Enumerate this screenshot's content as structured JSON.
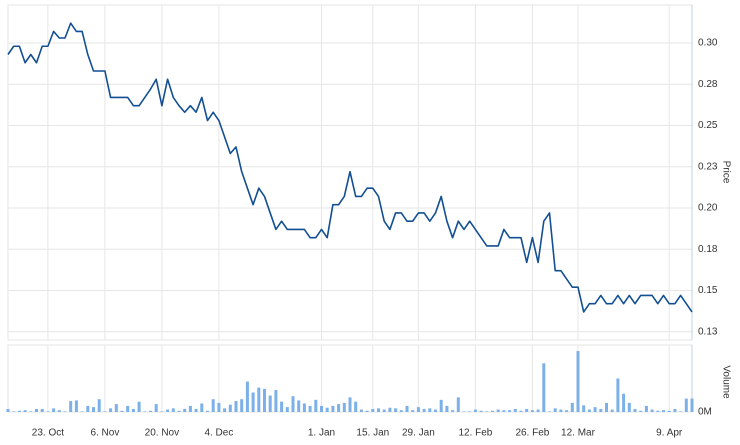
{
  "chart_data": [
    {
      "type": "line",
      "ylabel": "Price",
      "color": "#124f93",
      "grid": true,
      "ylim": [
        0.12,
        0.323
      ],
      "yticks": [
        {
          "value": 0.125,
          "label": "0.13"
        },
        {
          "value": 0.15,
          "label": "0.15"
        },
        {
          "value": 0.175,
          "label": "0.18"
        },
        {
          "value": 0.2,
          "label": "0.20"
        },
        {
          "value": 0.225,
          "label": "0.23"
        },
        {
          "value": 0.25,
          "label": "0.25"
        },
        {
          "value": 0.275,
          "label": "0.28"
        },
        {
          "value": 0.3,
          "label": "0.30"
        }
      ],
      "categories": [
        null,
        null,
        null,
        null,
        null,
        null,
        null,
        "23. Oct",
        null,
        null,
        null,
        null,
        null,
        null,
        null,
        null,
        null,
        "6. Nov",
        null,
        null,
        null,
        null,
        null,
        null,
        null,
        null,
        null,
        "20. Nov",
        null,
        null,
        null,
        null,
        null,
        null,
        null,
        null,
        null,
        "4. Dec",
        null,
        null,
        null,
        null,
        null,
        null,
        null,
        null,
        null,
        null,
        null,
        null,
        null,
        null,
        null,
        null,
        null,
        "1. Jan",
        null,
        null,
        null,
        null,
        null,
        null,
        null,
        null,
        "15. Jan",
        null,
        null,
        null,
        null,
        null,
        null,
        null,
        "29. Jan",
        null,
        null,
        null,
        null,
        null,
        null,
        null,
        null,
        null,
        "12. Feb",
        null,
        null,
        null,
        null,
        null,
        null,
        null,
        null,
        null,
        "26. Feb",
        null,
        null,
        null,
        null,
        null,
        null,
        null,
        "12. Mar",
        null,
        null,
        null,
        null,
        null,
        null,
        null,
        null,
        null,
        null,
        null,
        null,
        null,
        null,
        null,
        "9. Apr",
        null,
        null,
        null,
        null
      ],
      "values": [
        0.293,
        0.298,
        0.298,
        0.288,
        0.293,
        0.288,
        0.298,
        0.298,
        0.307,
        0.303,
        0.303,
        0.312,
        0.307,
        0.307,
        0.293,
        0.283,
        0.283,
        0.283,
        0.267,
        0.267,
        0.267,
        0.267,
        0.262,
        0.262,
        0.267,
        0.272,
        0.278,
        0.262,
        0.278,
        0.267,
        0.262,
        0.258,
        0.262,
        0.258,
        0.267,
        0.253,
        0.258,
        0.253,
        0.243,
        0.233,
        0.237,
        0.222,
        0.212,
        0.202,
        0.212,
        0.207,
        0.197,
        0.187,
        0.192,
        0.187,
        0.187,
        0.187,
        0.187,
        0.182,
        0.182,
        0.187,
        0.182,
        0.202,
        0.202,
        0.207,
        0.222,
        0.207,
        0.207,
        0.212,
        0.212,
        0.207,
        0.192,
        0.187,
        0.197,
        0.197,
        0.192,
        0.192,
        0.197,
        0.197,
        0.192,
        0.197,
        0.207,
        0.192,
        0.182,
        0.192,
        0.187,
        0.192,
        0.187,
        0.182,
        0.177,
        0.177,
        0.177,
        0.187,
        0.182,
        0.182,
        0.182,
        0.167,
        0.182,
        0.167,
        0.192,
        0.197,
        0.162,
        0.162,
        0.157,
        0.152,
        0.152,
        0.137,
        0.142,
        0.142,
        0.147,
        0.142,
        0.142,
        0.147,
        0.142,
        0.147,
        0.142,
        0.147,
        0.147,
        0.147,
        0.142,
        0.147,
        0.142,
        0.142,
        0.147,
        0.142,
        0.137
      ]
    },
    {
      "type": "bar",
      "ylabel": "Volume",
      "color": "#7cb0e8",
      "ylim": [
        0,
        1.1
      ],
      "yticks": [
        {
          "value": 0,
          "label": "0M"
        }
      ],
      "values": [
        0.05,
        0.01,
        0.02,
        0.03,
        0.01,
        0.05,
        0.05,
        0.01,
        0.06,
        0.03,
        0.01,
        0.18,
        0.19,
        0.01,
        0.1,
        0.08,
        0.21,
        0.01,
        0.06,
        0.13,
        0.02,
        0.1,
        0.05,
        0.17,
        0.01,
        0.02,
        0.13,
        0.01,
        0.04,
        0.06,
        0.02,
        0.05,
        0.1,
        0.05,
        0.14,
        0.02,
        0.21,
        0.15,
        0.06,
        0.12,
        0.18,
        0.21,
        0.5,
        0.32,
        0.4,
        0.38,
        0.27,
        0.36,
        0.17,
        0.08,
        0.26,
        0.19,
        0.14,
        0.1,
        0.2,
        0.1,
        0.07,
        0.1,
        0.13,
        0.15,
        0.24,
        0.17,
        0.04,
        0.02,
        0.05,
        0.06,
        0.04,
        0.07,
        0.06,
        0.03,
        0.1,
        0.03,
        0.08,
        0.05,
        0.06,
        0.04,
        0.2,
        0.1,
        0.03,
        0.24,
        0.01,
        0.01,
        0.04,
        0.02,
        0.01,
        0.02,
        0.04,
        0.03,
        0.03,
        0.05,
        0.02,
        0.05,
        0.03,
        0.04,
        0.8,
        0.01,
        0.06,
        0.04,
        0.03,
        0.15,
        1.0,
        0.11,
        0.04,
        0.08,
        0.05,
        0.15,
        0.04,
        0.55,
        0.3,
        0.15,
        0.05,
        0.02,
        0.1,
        0.04,
        0.02,
        0.03,
        0.02,
        0.05,
        0.01,
        0.22,
        0.22
      ]
    }
  ]
}
